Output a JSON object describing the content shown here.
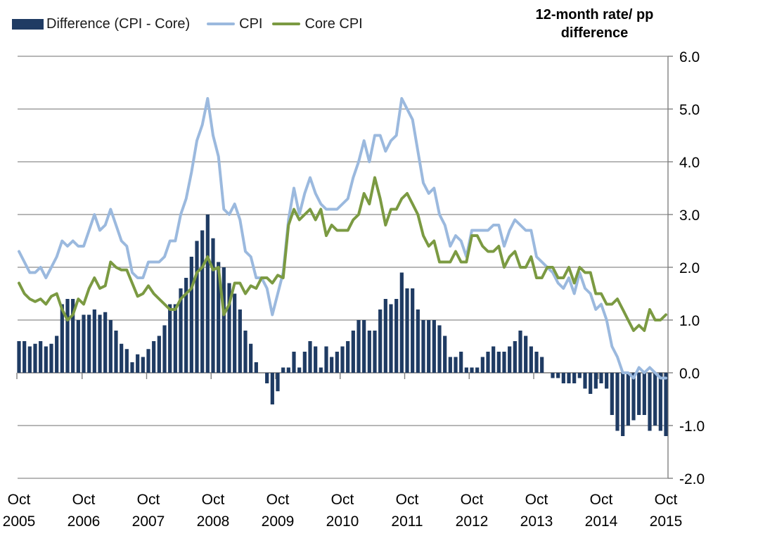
{
  "chart_data": {
    "type": "bar+line",
    "title": "12-month rate/ pp difference",
    "title_lines": [
      "12-month rate/ pp",
      "difference"
    ],
    "x_start": "Oct 2005",
    "x_end": "Oct 2015",
    "x_tick_labels": [
      {
        "month": "Oct",
        "year": "2005"
      },
      {
        "month": "Oct",
        "year": "2006"
      },
      {
        "month": "Oct",
        "year": "2007"
      },
      {
        "month": "Oct",
        "year": "2008"
      },
      {
        "month": "Oct",
        "year": "2009"
      },
      {
        "month": "Oct",
        "year": "2010"
      },
      {
        "month": "Oct",
        "year": "2011"
      },
      {
        "month": "Oct",
        "year": "2012"
      },
      {
        "month": "Oct",
        "year": "2013"
      },
      {
        "month": "Oct",
        "year": "2014"
      },
      {
        "month": "Oct",
        "year": "2015"
      }
    ],
    "months_per_label": 12,
    "ylim": [
      -2.0,
      6.0
    ],
    "y_tick_labels": [
      "6.0",
      "5.0",
      "4.0",
      "3.0",
      "2.0",
      "1.0",
      "0.0",
      "-1.0",
      "-2.0"
    ],
    "y_tick_values": [
      6,
      5,
      4,
      3,
      2,
      1,
      0,
      -1,
      -2
    ],
    "grid": true,
    "legend_position": "top-left",
    "colors": {
      "bar": "#1F3B63",
      "cpi_line": "#9BB9DE",
      "core_line": "#7B9A42",
      "gridline": "#8C8C8C",
      "axis": "#808080",
      "text": "#1a1a1a"
    },
    "series": [
      {
        "name": "Difference (CPI - Core)",
        "type": "bar",
        "values": [
          0.6,
          0.6,
          0.5,
          0.55,
          0.6,
          0.5,
          0.55,
          0.7,
          1.3,
          1.4,
          1.4,
          1.0,
          1.1,
          1.1,
          1.2,
          1.1,
          1.15,
          1.0,
          0.8,
          0.55,
          0.45,
          0.2,
          0.35,
          0.3,
          0.45,
          0.6,
          0.7,
          0.9,
          1.3,
          1.3,
          1.6,
          1.8,
          2.2,
          2.5,
          2.7,
          3.0,
          2.55,
          2.1,
          2.0,
          1.7,
          1.5,
          1.2,
          0.8,
          0.55,
          0.2,
          0.0,
          -0.2,
          -0.6,
          -0.35,
          0.1,
          0.1,
          0.4,
          0.1,
          0.4,
          0.6,
          0.5,
          0.1,
          0.5,
          0.3,
          0.4,
          0.5,
          0.6,
          0.8,
          1.0,
          1.0,
          0.8,
          0.8,
          1.2,
          1.4,
          1.3,
          1.4,
          1.9,
          1.6,
          1.6,
          1.2,
          1.0,
          1.0,
          1.0,
          0.9,
          0.7,
          0.3,
          0.3,
          0.4,
          0.1,
          0.1,
          0.1,
          0.3,
          0.4,
          0.5,
          0.4,
          0.4,
          0.5,
          0.6,
          0.8,
          0.7,
          0.5,
          0.4,
          0.3,
          0.0,
          -0.1,
          -0.1,
          -0.2,
          -0.2,
          -0.2,
          -0.1,
          -0.3,
          -0.4,
          -0.3,
          -0.2,
          -0.3,
          -0.8,
          -1.1,
          -1.2,
          -1.0,
          -0.9,
          -0.8,
          -0.8,
          -1.1,
          -1.0,
          -1.1,
          -1.2
        ]
      },
      {
        "name": "CPI",
        "type": "line",
        "values": [
          2.3,
          2.1,
          1.9,
          1.9,
          2.0,
          1.8,
          2.0,
          2.2,
          2.5,
          2.4,
          2.5,
          2.4,
          2.4,
          2.7,
          3.0,
          2.7,
          2.8,
          3.1,
          2.8,
          2.5,
          2.4,
          1.9,
          1.8,
          1.8,
          2.1,
          2.1,
          2.1,
          2.2,
          2.5,
          2.5,
          3.0,
          3.3,
          3.8,
          4.4,
          4.7,
          5.2,
          4.5,
          4.1,
          3.1,
          3.0,
          3.2,
          2.9,
          2.3,
          2.2,
          1.8,
          1.8,
          1.6,
          1.1,
          1.5,
          1.9,
          2.9,
          3.5,
          3.0,
          3.4,
          3.7,
          3.4,
          3.2,
          3.1,
          3.1,
          3.1,
          3.2,
          3.3,
          3.7,
          4.0,
          4.4,
          4.0,
          4.5,
          4.5,
          4.2,
          4.4,
          4.5,
          5.2,
          5.0,
          4.8,
          4.2,
          3.6,
          3.4,
          3.5,
          3.0,
          2.8,
          2.4,
          2.6,
          2.5,
          2.2,
          2.7,
          2.7,
          2.7,
          2.7,
          2.8,
          2.8,
          2.4,
          2.7,
          2.9,
          2.8,
          2.7,
          2.7,
          2.2,
          2.1,
          2.0,
          1.9,
          1.7,
          1.6,
          1.8,
          1.5,
          1.9,
          1.6,
          1.5,
          1.2,
          1.3,
          1.0,
          0.5,
          0.3,
          0.0,
          0.0,
          -0.1,
          0.1,
          0.0,
          0.1,
          0.0,
          -0.1,
          -0.1
        ]
      },
      {
        "name": "Core CPI",
        "type": "line",
        "values": [
          1.7,
          1.5,
          1.4,
          1.35,
          1.4,
          1.3,
          1.45,
          1.5,
          1.2,
          1.0,
          1.1,
          1.4,
          1.3,
          1.6,
          1.8,
          1.6,
          1.65,
          2.1,
          2.0,
          1.95,
          1.95,
          1.7,
          1.45,
          1.5,
          1.65,
          1.5,
          1.4,
          1.3,
          1.2,
          1.2,
          1.4,
          1.5,
          1.6,
          1.9,
          2.0,
          2.2,
          1.95,
          2.0,
          1.1,
          1.3,
          1.7,
          1.7,
          1.5,
          1.65,
          1.6,
          1.8,
          1.8,
          1.7,
          1.85,
          1.8,
          2.8,
          3.1,
          2.9,
          3.0,
          3.1,
          2.9,
          3.1,
          2.6,
          2.8,
          2.7,
          2.7,
          2.7,
          2.9,
          3.0,
          3.4,
          3.2,
          3.7,
          3.3,
          2.8,
          3.1,
          3.1,
          3.3,
          3.4,
          3.2,
          3.0,
          2.6,
          2.4,
          2.5,
          2.1,
          2.1,
          2.1,
          2.3,
          2.1,
          2.1,
          2.6,
          2.6,
          2.4,
          2.3,
          2.3,
          2.4,
          2.0,
          2.2,
          2.3,
          2.0,
          2.0,
          2.2,
          1.8,
          1.8,
          2.0,
          2.0,
          1.8,
          1.8,
          2.0,
          1.7,
          2.0,
          1.9,
          1.9,
          1.5,
          1.5,
          1.3,
          1.3,
          1.4,
          1.2,
          1.0,
          0.8,
          0.9,
          0.8,
          1.2,
          1.0,
          1.0,
          1.1
        ]
      }
    ]
  }
}
